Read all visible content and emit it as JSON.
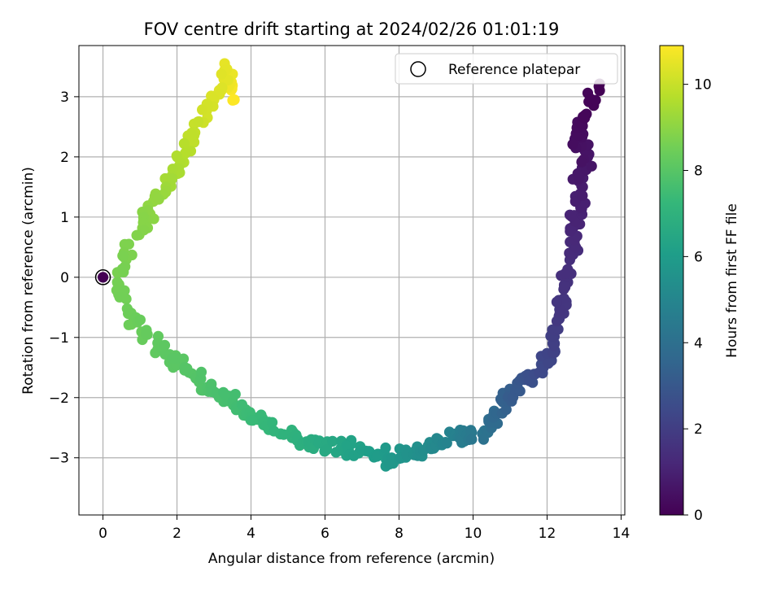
{
  "chart_data": {
    "type": "scatter",
    "title": "FOV centre drift starting at 2024/02/26 01:01:19",
    "xlabel": "Angular distance from reference (arcmin)",
    "ylabel": "Rotation from reference (arcmin)",
    "xlim": [
      -0.65,
      14.1
    ],
    "ylim": [
      -3.95,
      3.85
    ],
    "xticks": [
      0,
      2,
      4,
      6,
      8,
      10,
      12,
      14
    ],
    "xtick_labels": [
      "0",
      "2",
      "4",
      "6",
      "8",
      "10",
      "12",
      "14"
    ],
    "yticks": [
      -3,
      -2,
      -1,
      0,
      1,
      2,
      3
    ],
    "ytick_labels": [
      "−3",
      "−2",
      "−1",
      "0",
      "1",
      "2",
      "3"
    ],
    "grid": true,
    "legend": {
      "position": "upper right",
      "entries": [
        "Reference platepar"
      ]
    },
    "colorbar": {
      "label": "Hours from first FF file",
      "colormap": "viridis",
      "range": [
        0,
        10.9
      ],
      "ticks": [
        0,
        2,
        4,
        6,
        8,
        10
      ],
      "tick_labels": [
        "0",
        "2",
        "4",
        "6",
        "8",
        "10"
      ]
    },
    "reference_point": {
      "x": 0,
      "y": 0
    },
    "color_stops": [
      "#440154",
      "#482878",
      "#3e4989",
      "#31688e",
      "#26828e",
      "#1f9e89",
      "#35b779",
      "#6ece58",
      "#b5de2b",
      "#fde725"
    ],
    "anchors": [
      {
        "x": 0.0,
        "y": 0.0,
        "t": 0.0
      },
      {
        "x": 13.4,
        "y": 3.17,
        "t": 0.0
      },
      {
        "x": 13.05,
        "y": 2.7,
        "t": 0.2
      },
      {
        "x": 12.75,
        "y": 2.3,
        "t": 0.4
      },
      {
        "x": 13.1,
        "y": 2.0,
        "t": 0.6
      },
      {
        "x": 12.85,
        "y": 1.6,
        "t": 0.8
      },
      {
        "x": 12.9,
        "y": 1.2,
        "t": 1.0
      },
      {
        "x": 12.65,
        "y": 0.8,
        "t": 1.2
      },
      {
        "x": 12.7,
        "y": 0.4,
        "t": 1.4
      },
      {
        "x": 12.45,
        "y": -0.2,
        "t": 1.6
      },
      {
        "x": 12.4,
        "y": -0.6,
        "t": 1.8
      },
      {
        "x": 12.2,
        "y": -1.1,
        "t": 2.1
      },
      {
        "x": 11.9,
        "y": -1.5,
        "t": 2.4
      },
      {
        "x": 11.4,
        "y": -1.7,
        "t": 2.8
      },
      {
        "x": 11.0,
        "y": -2.0,
        "t": 3.2
      },
      {
        "x": 10.6,
        "y": -2.3,
        "t": 3.7
      },
      {
        "x": 10.25,
        "y": -2.6,
        "t": 4.2
      },
      {
        "x": 9.6,
        "y": -2.65,
        "t": 4.7
      },
      {
        "x": 9.0,
        "y": -2.8,
        "t": 5.1
      },
      {
        "x": 8.4,
        "y": -2.95,
        "t": 5.5
      },
      {
        "x": 7.8,
        "y": -3.0,
        "t": 5.8
      },
      {
        "x": 7.2,
        "y": -2.9,
        "t": 6.1
      },
      {
        "x": 6.6,
        "y": -2.85,
        "t": 6.35
      },
      {
        "x": 6.0,
        "y": -2.8,
        "t": 6.6
      },
      {
        "x": 5.4,
        "y": -2.75,
        "t": 6.85
      },
      {
        "x": 4.8,
        "y": -2.6,
        "t": 7.1
      },
      {
        "x": 4.2,
        "y": -2.35,
        "t": 7.35
      },
      {
        "x": 3.6,
        "y": -2.15,
        "t": 7.55
      },
      {
        "x": 3.0,
        "y": -1.9,
        "t": 7.75
      },
      {
        "x": 2.4,
        "y": -1.6,
        "t": 7.95
      },
      {
        "x": 1.8,
        "y": -1.3,
        "t": 8.1
      },
      {
        "x": 1.2,
        "y": -0.95,
        "t": 8.3
      },
      {
        "x": 0.7,
        "y": -0.6,
        "t": 8.45
      },
      {
        "x": 0.4,
        "y": -0.1,
        "t": 8.6
      },
      {
        "x": 0.7,
        "y": 0.55,
        "t": 8.75
      },
      {
        "x": 1.2,
        "y": 0.95,
        "t": 8.95
      },
      {
        "x": 1.7,
        "y": 1.5,
        "t": 9.3
      },
      {
        "x": 2.1,
        "y": 1.9,
        "t": 9.6
      },
      {
        "x": 2.4,
        "y": 2.4,
        "t": 9.9
      },
      {
        "x": 3.0,
        "y": 2.95,
        "t": 10.3
      },
      {
        "x": 3.35,
        "y": 3.46,
        "t": 10.5
      },
      {
        "x": 3.55,
        "y": 2.95,
        "t": 10.9
      }
    ]
  }
}
